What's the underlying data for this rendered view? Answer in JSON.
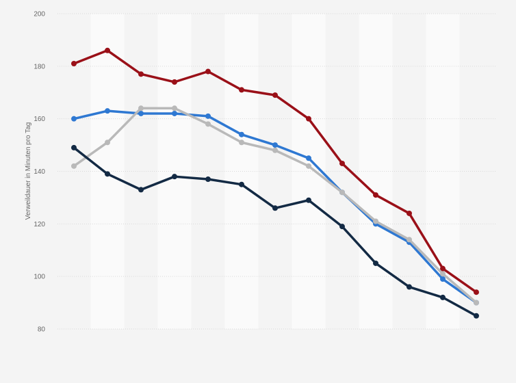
{
  "chart_data": {
    "type": "line",
    "title": "",
    "xlabel": "",
    "ylabel": "Verweildauer in Minuten pro Tag",
    "ylim": [
      80,
      200
    ],
    "yticks": [
      80,
      100,
      120,
      140,
      160,
      180,
      200
    ],
    "grid": true,
    "legend": "none",
    "x": [
      1,
      2,
      3,
      4,
      5,
      6,
      7,
      8,
      9,
      10,
      11,
      12,
      13
    ],
    "series": [
      {
        "color": "#9a1018",
        "values": [
          181,
          186,
          177,
          174,
          178,
          171,
          169,
          160,
          143,
          131,
          124,
          103,
          94
        ]
      },
      {
        "color": "#2e78d2",
        "values": [
          160,
          163,
          162,
          162,
          161,
          154,
          150,
          145,
          132,
          120,
          113,
          99,
          90
        ]
      },
      {
        "color": "#b9b9b9",
        "values": [
          142,
          151,
          164,
          164,
          158,
          151,
          148,
          142,
          132,
          121,
          114,
          101,
          90
        ]
      },
      {
        "color": "#132a44",
        "values": [
          149,
          139,
          133,
          138,
          137,
          135,
          126,
          129,
          119,
          105,
          96,
          92,
          85
        ]
      }
    ]
  }
}
